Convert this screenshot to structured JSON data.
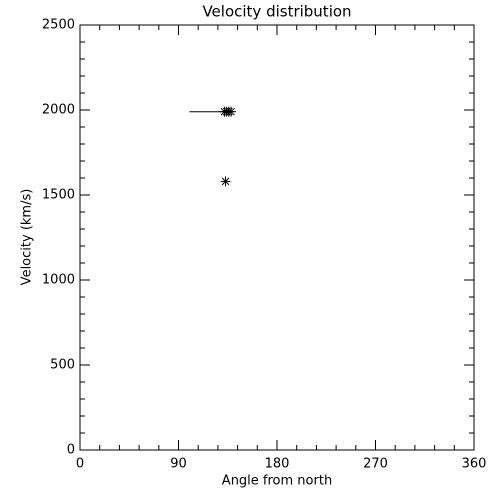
{
  "chart_data": {
    "type": "scatter",
    "title": "Velocity distribution",
    "x_label": "Angle from north",
    "y_label": "Velocity (km/s)",
    "series": [
      {
        "marker": "none",
        "color": "#000000",
        "x": [
          100,
          133
        ],
        "values": [
          1990,
          1990
        ]
      },
      {
        "marker": "star",
        "color": "#000000",
        "x": [
          132,
          134,
          136,
          138,
          133
        ],
        "values": [
          1990,
          1990,
          1990,
          1990,
          1580
        ]
      }
    ],
    "xlim": [
      0,
      360
    ],
    "xticks": [
      0,
      90,
      180,
      270,
      360
    ],
    "xminorticks": [
      18,
      36,
      54,
      72,
      108,
      126,
      144,
      162,
      198,
      216,
      234,
      252,
      288,
      306,
      324,
      342
    ],
    "ylim": [
      0,
      2500
    ],
    "yticks": [
      0,
      500,
      1000,
      1500,
      2000,
      2500
    ],
    "yminorticks": [
      100,
      200,
      300,
      400,
      600,
      700,
      800,
      900,
      1100,
      1200,
      1300,
      1400,
      1600,
      1700,
      1800,
      1900,
      2100,
      2200,
      2300,
      2400
    ],
    "grid": false
  }
}
